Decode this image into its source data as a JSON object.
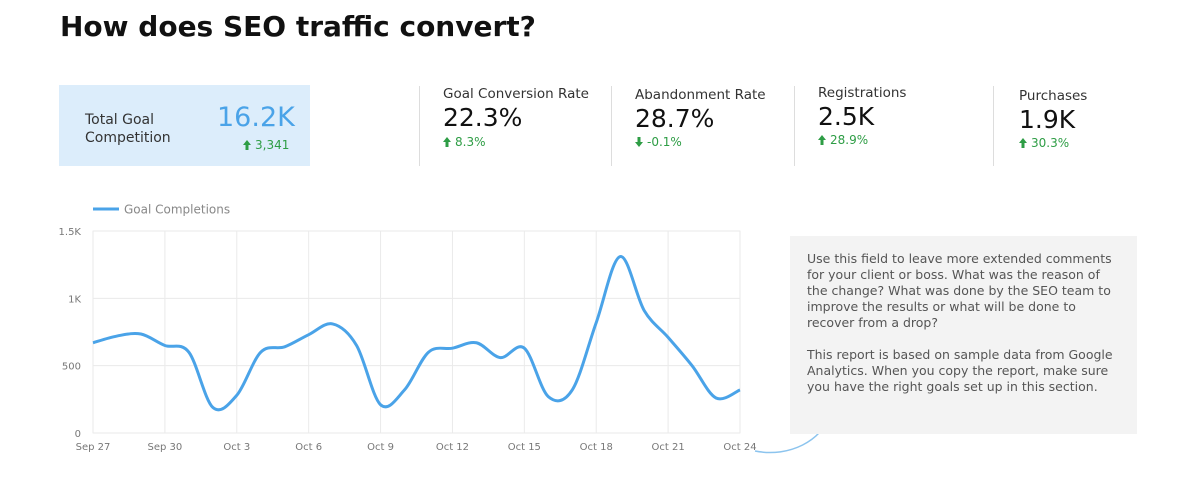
{
  "title": "How does SEO traffic convert?",
  "kpis": [
    {
      "label": "Total Goal Competition",
      "value": "16.2K",
      "change": "3,341",
      "trend": "up"
    },
    {
      "label": "Goal Conversion Rate",
      "value": "22.3%",
      "change": "8.3%",
      "trend": "up"
    },
    {
      "label": "Abandonment Rate",
      "value": "28.7%",
      "change": "-0.1%",
      "trend": "down"
    },
    {
      "label": "Registrations",
      "value": "2.5K",
      "change": "28.9%",
      "trend": "up"
    },
    {
      "label": "Purchases",
      "value": "1.9K",
      "change": "30.3%",
      "trend": "up"
    }
  ],
  "chart_data": {
    "type": "line",
    "categories": [
      "Sep 27",
      null,
      null,
      "Sep 30",
      null,
      null,
      "Oct 3",
      null,
      null,
      "Oct 6",
      null,
      null,
      "Oct 9",
      null,
      null,
      "Oct 12",
      null,
      null,
      "Oct 15",
      null,
      null,
      "Oct 18",
      null,
      null,
      "Oct 21",
      null,
      null,
      "Oct 24"
    ],
    "series": [
      {
        "name": "Goal Completions",
        "color": "#4aa3e8",
        "values": [
          670,
          720,
          735,
          650,
          600,
          190,
          280,
          600,
          640,
          730,
          810,
          650,
          210,
          320,
          600,
          630,
          670,
          560,
          630,
          270,
          320,
          820,
          1310,
          910,
          710,
          500,
          260,
          320
        ]
      }
    ],
    "ylim": [
      0,
      1500
    ],
    "yticks": [
      0,
      500,
      {
        "value": 1000,
        "label": "1K"
      },
      {
        "value": 1500,
        "label": "1.5K"
      }
    ],
    "grid": true
  },
  "comment": [
    "Use this field to leave more extended comments for your client or boss. What was the reason of the change? What was done by the SEO team to improve the results or what will be done to recover from a drop?",
    "This report is based on sample data from Google Analytics. When you copy the report, make sure you have the right goals set up in this section."
  ]
}
